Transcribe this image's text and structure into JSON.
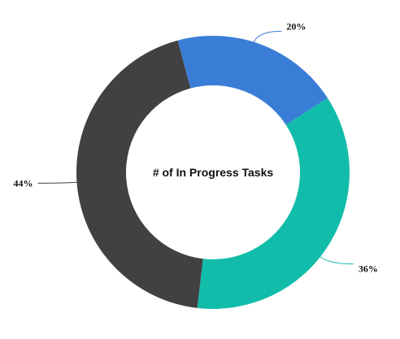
{
  "chart_data": {
    "type": "pie",
    "variant": "donut",
    "title": "# of In Progress Tasks",
    "slices": [
      {
        "label": "20%",
        "value": 20,
        "color": "#3a7dd6"
      },
      {
        "label": "36%",
        "value": 36,
        "color": "#11bdaa"
      },
      {
        "label": "44%",
        "value": 44,
        "color": "#414141"
      }
    ],
    "leader_line_colors": [
      "#3a7dd6",
      "#11bdaa",
      "#414141"
    ]
  }
}
